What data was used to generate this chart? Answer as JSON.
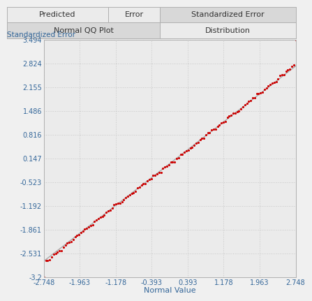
{
  "title_row1": [
    "Predicted",
    "Error",
    "Standardized Error"
  ],
  "title_row2": [
    "Normal QQ Plot",
    "Distribution"
  ],
  "ylabel": "Standardized Error",
  "xlabel": "Normal Value",
  "xlim": [
    -2.748,
    2.748
  ],
  "ylim": [
    -3.2,
    3.494
  ],
  "xticks": [
    -2.748,
    -1.963,
    -1.178,
    -0.393,
    0.393,
    1.178,
    1.963,
    2.748
  ],
  "yticks": [
    -3.2,
    -2.531,
    -1.861,
    -1.192,
    -0.523,
    0.147,
    0.816,
    1.486,
    2.155,
    2.824,
    3.494
  ],
  "grid_color": "#c8c8c8",
  "bg_color": "#f0f0f0",
  "plot_bg_color": "#ebebeb",
  "scatter_color": "#cc0000",
  "line_color": "#aaaaaa",
  "tick_label_color": "#336699",
  "axis_label_color": "#336699",
  "n_points": 130
}
